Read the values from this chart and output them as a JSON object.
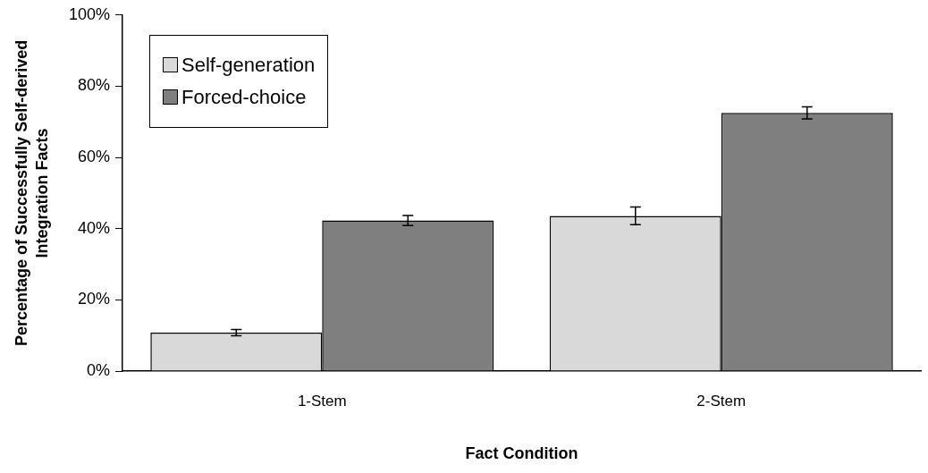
{
  "chart_data": {
    "type": "bar",
    "xlabel": "Fact Condition",
    "ylabel": "Percentage of Successfully Self-derived Integration Facts",
    "categories": [
      "1-Stem",
      "2-Stem"
    ],
    "series": [
      {
        "name": "Self-generation",
        "color": "#d9d9d9",
        "values": [
          10.8,
          43.6
        ],
        "errors": [
          0.9,
          2.5
        ]
      },
      {
        "name": "Forced-choice",
        "color": "#7f7f7f",
        "values": [
          42.3,
          72.5
        ],
        "errors": [
          1.4,
          1.7
        ]
      }
    ],
    "ylim": [
      0,
      100
    ],
    "yticks": [
      {
        "value": 0,
        "label": "0%"
      },
      {
        "value": 20,
        "label": "20%"
      },
      {
        "value": 40,
        "label": "40%"
      },
      {
        "value": 60,
        "label": "60%"
      },
      {
        "value": 80,
        "label": "80%"
      },
      {
        "value": 100,
        "label": "100%"
      }
    ],
    "grid": false,
    "legend": "top left"
  }
}
